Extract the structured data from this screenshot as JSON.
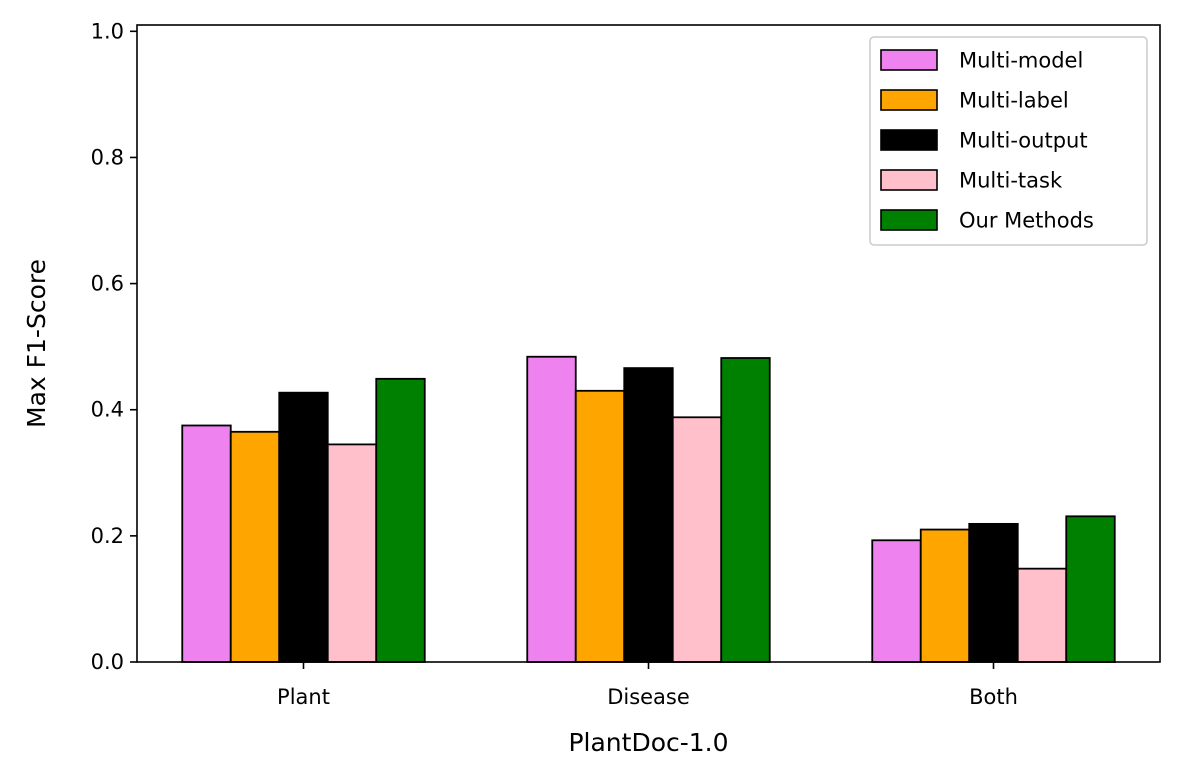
{
  "chart_data": {
    "type": "bar",
    "title": "",
    "xlabel": "PlantDoc-1.0",
    "ylabel": "Max F1-Score",
    "categories": [
      "Plant",
      "Disease",
      "Both"
    ],
    "ylim": [
      0,
      1.01
    ],
    "yticks": [
      0.0,
      0.2,
      0.4,
      0.6,
      0.8,
      1.0
    ],
    "ytick_labels": [
      "0.0",
      "0.2",
      "0.4",
      "0.6",
      "0.8",
      "1.0"
    ],
    "grid": false,
    "legend_position": "top-right",
    "series": [
      {
        "name": "Multi-model",
        "color": "#ee82ee",
        "values": [
          0.375,
          0.484,
          0.193
        ]
      },
      {
        "name": "Multi-label",
        "color": "#ffa500",
        "values": [
          0.365,
          0.43,
          0.21
        ]
      },
      {
        "name": "Multi-output",
        "color": "#000000",
        "values": [
          0.427,
          0.466,
          0.219
        ]
      },
      {
        "name": "Multi-task",
        "color": "#ffc0cb",
        "values": [
          0.345,
          0.388,
          0.148
        ]
      },
      {
        "name": "Our Methods",
        "color": "#008000",
        "values": [
          0.449,
          0.482,
          0.231
        ]
      }
    ]
  }
}
